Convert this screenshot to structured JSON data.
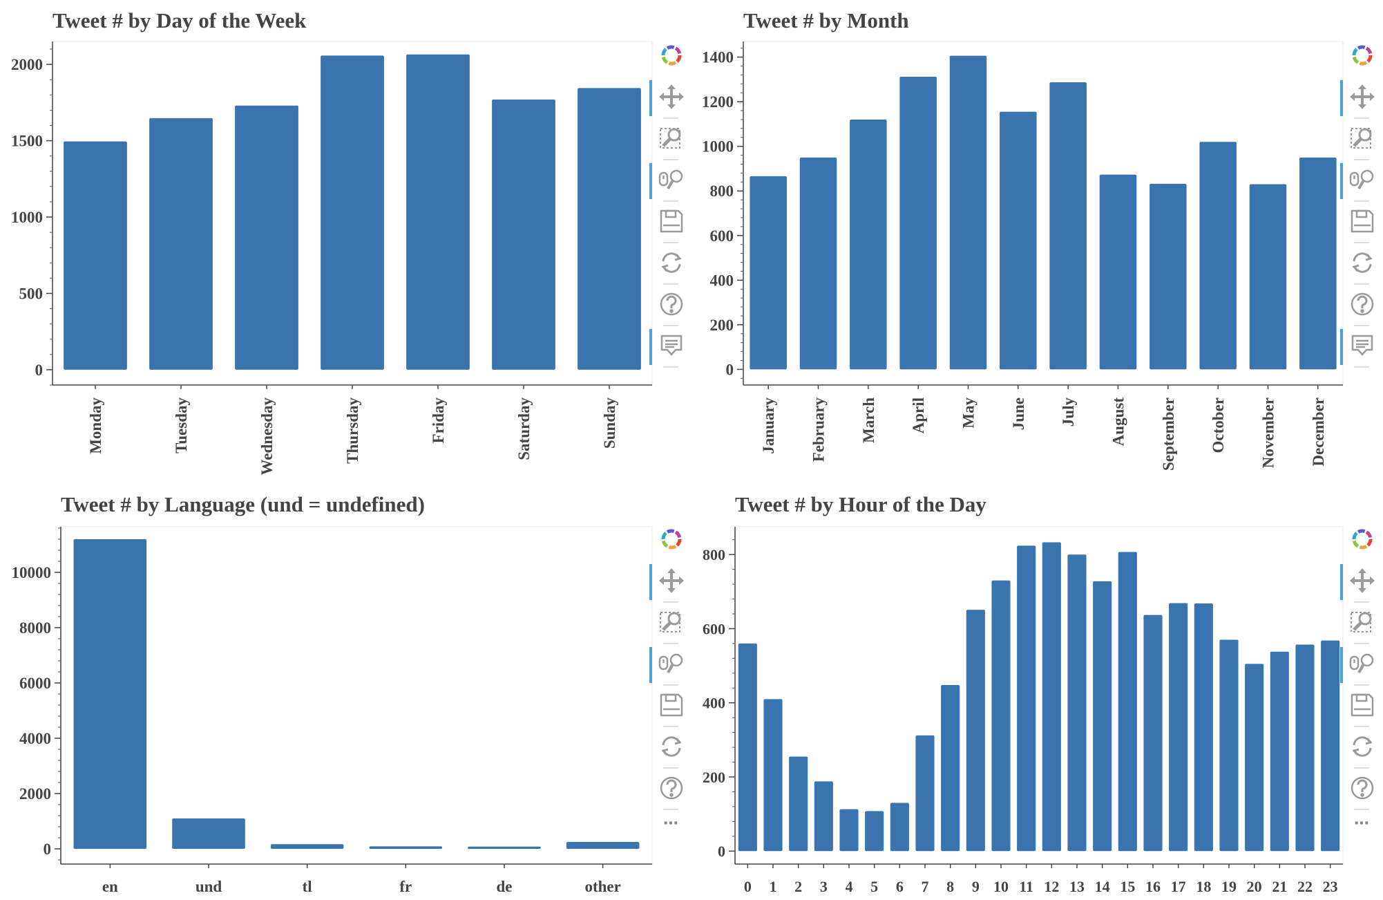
{
  "chart_data": [
    {
      "type": "bar",
      "title": "Tweet # by Day of the Week",
      "categories": [
        "Monday",
        "Tuesday",
        "Wednesday",
        "Thursday",
        "Friday",
        "Saturday",
        "Sunday"
      ],
      "values": [
        1495,
        1648,
        1730,
        2058,
        2065,
        1770,
        1845
      ],
      "yticks": [
        0,
        500,
        1000,
        1500,
        2000
      ],
      "ylim": [
        -100,
        2150
      ],
      "rotate_labels": true,
      "bar_color": "#3a74ae"
    },
    {
      "type": "bar",
      "title": "Tweet # by Month",
      "categories": [
        "January",
        "February",
        "March",
        "April",
        "May",
        "June",
        "July",
        "August",
        "September",
        "October",
        "November",
        "December"
      ],
      "values": [
        866,
        950,
        1120,
        1312,
        1406,
        1155,
        1287,
        873,
        832,
        1020,
        830,
        950
      ],
      "yticks": [
        0,
        200,
        400,
        600,
        800,
        1000,
        1200,
        1400
      ],
      "ylim": [
        -70,
        1470
      ],
      "rotate_labels": true,
      "bar_color": "#3a74ae"
    },
    {
      "type": "bar",
      "title": "Tweet # by Language (und = undefined)",
      "categories": [
        "en",
        "und",
        "tl",
        "fr",
        "de",
        "other"
      ],
      "values": [
        11200,
        1100,
        170,
        90,
        80,
        250
      ],
      "yticks": [
        0,
        2000,
        4000,
        6000,
        8000,
        10000
      ],
      "ylim": [
        -550,
        11650
      ],
      "rotate_labels": false,
      "bar_color": "#3a74ae"
    },
    {
      "type": "bar",
      "title": "Tweet # by Hour of the Day",
      "categories": [
        "0",
        "1",
        "2",
        "3",
        "4",
        "5",
        "6",
        "7",
        "8",
        "9",
        "10",
        "11",
        "12",
        "13",
        "14",
        "15",
        "16",
        "17",
        "18",
        "19",
        "20",
        "21",
        "22",
        "23"
      ],
      "values": [
        560,
        410,
        255,
        188,
        113,
        108,
        130,
        312,
        448,
        651,
        730,
        824,
        833,
        800,
        728,
        807,
        637,
        669,
        668,
        570,
        505,
        538,
        557,
        568
      ],
      "yticks": [
        0,
        200,
        400,
        600,
        800
      ],
      "ylim": [
        -35,
        875
      ],
      "rotate_labels": false,
      "bar_color": "#3a74ae"
    }
  ],
  "toolbar": {
    "tools": [
      "bokeh-logo-icon",
      "pan-icon",
      "box-zoom-icon",
      "wheel-zoom-icon",
      "save-icon",
      "reset-icon",
      "help-icon",
      "hover-icon"
    ],
    "more_label": "⋯"
  }
}
